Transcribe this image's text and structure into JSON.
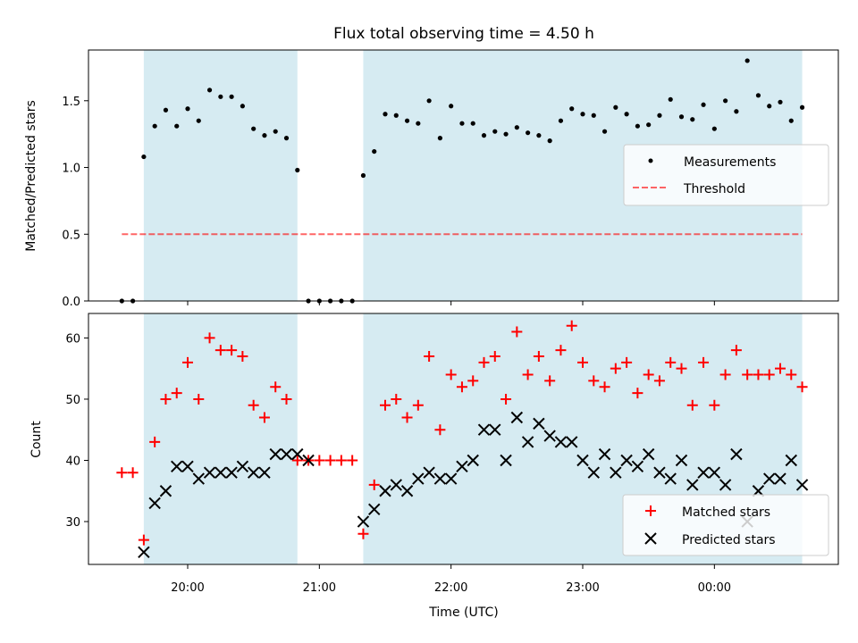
{
  "title": "Flux total observing time = 4.50 h",
  "colors": {
    "band": "#add8e6",
    "measurement": "#000000",
    "threshold": "#ff0000",
    "matched": "#ff0000",
    "predicted": "#000000"
  },
  "chart_data": [
    {
      "type": "scatter",
      "ylabel": "Matched/Predicted stars",
      "ylim": [
        0,
        1.88
      ],
      "yticks": [
        0.0,
        0.5,
        1.0,
        1.5
      ],
      "ytick_labels": [
        "0.0",
        "0.5",
        "1.0",
        "1.5"
      ],
      "legend": {
        "placement": "right",
        "entries": [
          "Measurements",
          "Threshold"
        ]
      },
      "threshold": {
        "name": "Threshold",
        "y": 0.5,
        "x_start": "19:30",
        "x_end": "00:40"
      },
      "series": [
        {
          "name": "Measurements",
          "x": [
            "19:30",
            "19:35",
            "19:40",
            "19:45",
            "19:50",
            "19:55",
            "20:00",
            "20:05",
            "20:10",
            "20:15",
            "20:20",
            "20:25",
            "20:30",
            "20:35",
            "20:40",
            "20:45",
            "20:50",
            "20:55",
            "21:00",
            "21:05",
            "21:10",
            "21:15",
            "21:20",
            "21:25",
            "21:30",
            "21:35",
            "21:40",
            "21:45",
            "21:50",
            "21:55",
            "22:00",
            "22:05",
            "22:10",
            "22:15",
            "22:20",
            "22:25",
            "22:30",
            "22:35",
            "22:40",
            "22:45",
            "22:50",
            "22:55",
            "23:00",
            "23:05",
            "23:10",
            "23:15",
            "23:20",
            "23:25",
            "23:30",
            "23:35",
            "23:40",
            "23:45",
            "23:50",
            "23:55",
            "00:00",
            "00:05",
            "00:10",
            "00:15",
            "00:20",
            "00:25",
            "00:30",
            "00:35",
            "00:40"
          ],
          "y": [
            0,
            0,
            1.08,
            1.31,
            1.43,
            1.31,
            1.44,
            1.35,
            1.58,
            1.53,
            1.53,
            1.46,
            1.29,
            1.24,
            1.27,
            1.22,
            0.98,
            0,
            0,
            0,
            0,
            0,
            0.94,
            1.12,
            1.4,
            1.39,
            1.35,
            1.33,
            1.5,
            1.22,
            1.46,
            1.33,
            1.33,
            1.24,
            1.27,
            1.25,
            1.3,
            1.26,
            1.24,
            1.2,
            1.35,
            1.44,
            1.4,
            1.39,
            1.27,
            1.45,
            1.4,
            1.31,
            1.32,
            1.39,
            1.51,
            1.38,
            1.36,
            1.47,
            1.29,
            1.5,
            1.42,
            1.8,
            1.54,
            1.46,
            1.49,
            1.35,
            1.45
          ]
        }
      ]
    },
    {
      "type": "scatter",
      "xlabel": "Time (UTC)",
      "ylabel": "Count",
      "ylim": [
        23,
        64
      ],
      "yticks": [
        30,
        40,
        50,
        60
      ],
      "ytick_labels": [
        "30",
        "40",
        "50",
        "60"
      ],
      "xtick_labels": [
        "20:00",
        "21:00",
        "22:00",
        "23:00",
        "00:00"
      ],
      "legend": {
        "placement": "lower right",
        "entries": [
          "Matched stars",
          "Predicted stars"
        ]
      },
      "series": [
        {
          "name": "Matched stars",
          "x": [
            "19:30",
            "19:35",
            "19:40",
            "19:45",
            "19:50",
            "19:55",
            "20:00",
            "20:05",
            "20:10",
            "20:15",
            "20:20",
            "20:25",
            "20:30",
            "20:35",
            "20:40",
            "20:45",
            "20:50",
            "20:55",
            "21:00",
            "21:05",
            "21:10",
            "21:15",
            "21:20",
            "21:25",
            "21:30",
            "21:35",
            "21:40",
            "21:45",
            "21:50",
            "21:55",
            "22:00",
            "22:05",
            "22:10",
            "22:15",
            "22:20",
            "22:25",
            "22:30",
            "22:35",
            "22:40",
            "22:45",
            "22:50",
            "22:55",
            "23:00",
            "23:05",
            "23:10",
            "23:15",
            "23:20",
            "23:25",
            "23:30",
            "23:35",
            "23:40",
            "23:45",
            "23:50",
            "23:55",
            "00:00",
            "00:05",
            "00:10",
            "00:15",
            "00:20",
            "00:25",
            "00:30",
            "00:35",
            "00:40"
          ],
          "y": [
            38,
            38,
            27,
            43,
            50,
            51,
            56,
            50,
            60,
            58,
            58,
            57,
            49,
            47,
            52,
            50,
            40,
            40,
            40,
            40,
            40,
            40,
            28,
            36,
            49,
            50,
            47,
            49,
            57,
            45,
            54,
            52,
            53,
            56,
            57,
            50,
            61,
            54,
            57,
            53,
            58,
            62,
            56,
            53,
            52,
            55,
            56,
            51,
            54,
            53,
            56,
            55,
            49,
            56,
            49,
            54,
            58,
            54,
            54,
            54,
            55,
            54,
            52
          ]
        },
        {
          "name": "Predicted stars",
          "x": [
            "19:40",
            "19:45",
            "19:50",
            "19:55",
            "20:00",
            "20:05",
            "20:10",
            "20:15",
            "20:20",
            "20:25",
            "20:30",
            "20:35",
            "20:40",
            "20:45",
            "20:50",
            "20:55",
            "21:20",
            "21:25",
            "21:30",
            "21:35",
            "21:40",
            "21:45",
            "21:50",
            "21:55",
            "22:00",
            "22:05",
            "22:10",
            "22:15",
            "22:20",
            "22:25",
            "22:30",
            "22:35",
            "22:40",
            "22:45",
            "22:50",
            "22:55",
            "23:00",
            "23:05",
            "23:10",
            "23:15",
            "23:20",
            "23:25",
            "23:30",
            "23:35",
            "23:40",
            "23:45",
            "23:50",
            "23:55",
            "00:00",
            "00:05",
            "00:10",
            "00:15",
            "00:20",
            "00:25",
            "00:30",
            "00:35",
            "00:40"
          ],
          "y": [
            25,
            33,
            35,
            39,
            39,
            37,
            38,
            38,
            38,
            39,
            38,
            38,
            41,
            41,
            41,
            40,
            30,
            32,
            35,
            36,
            35,
            37,
            38,
            37,
            37,
            39,
            40,
            45,
            45,
            40,
            47,
            43,
            46,
            44,
            43,
            43,
            40,
            38,
            41,
            38,
            40,
            39,
            41,
            38,
            37,
            40,
            36,
            38,
            38,
            36,
            41,
            30,
            35,
            37,
            37,
            40,
            36
          ]
        }
      ]
    }
  ],
  "bands": [
    {
      "start": "19:40",
      "end": "20:50"
    },
    {
      "start": "21:20",
      "end": "00:40"
    }
  ]
}
